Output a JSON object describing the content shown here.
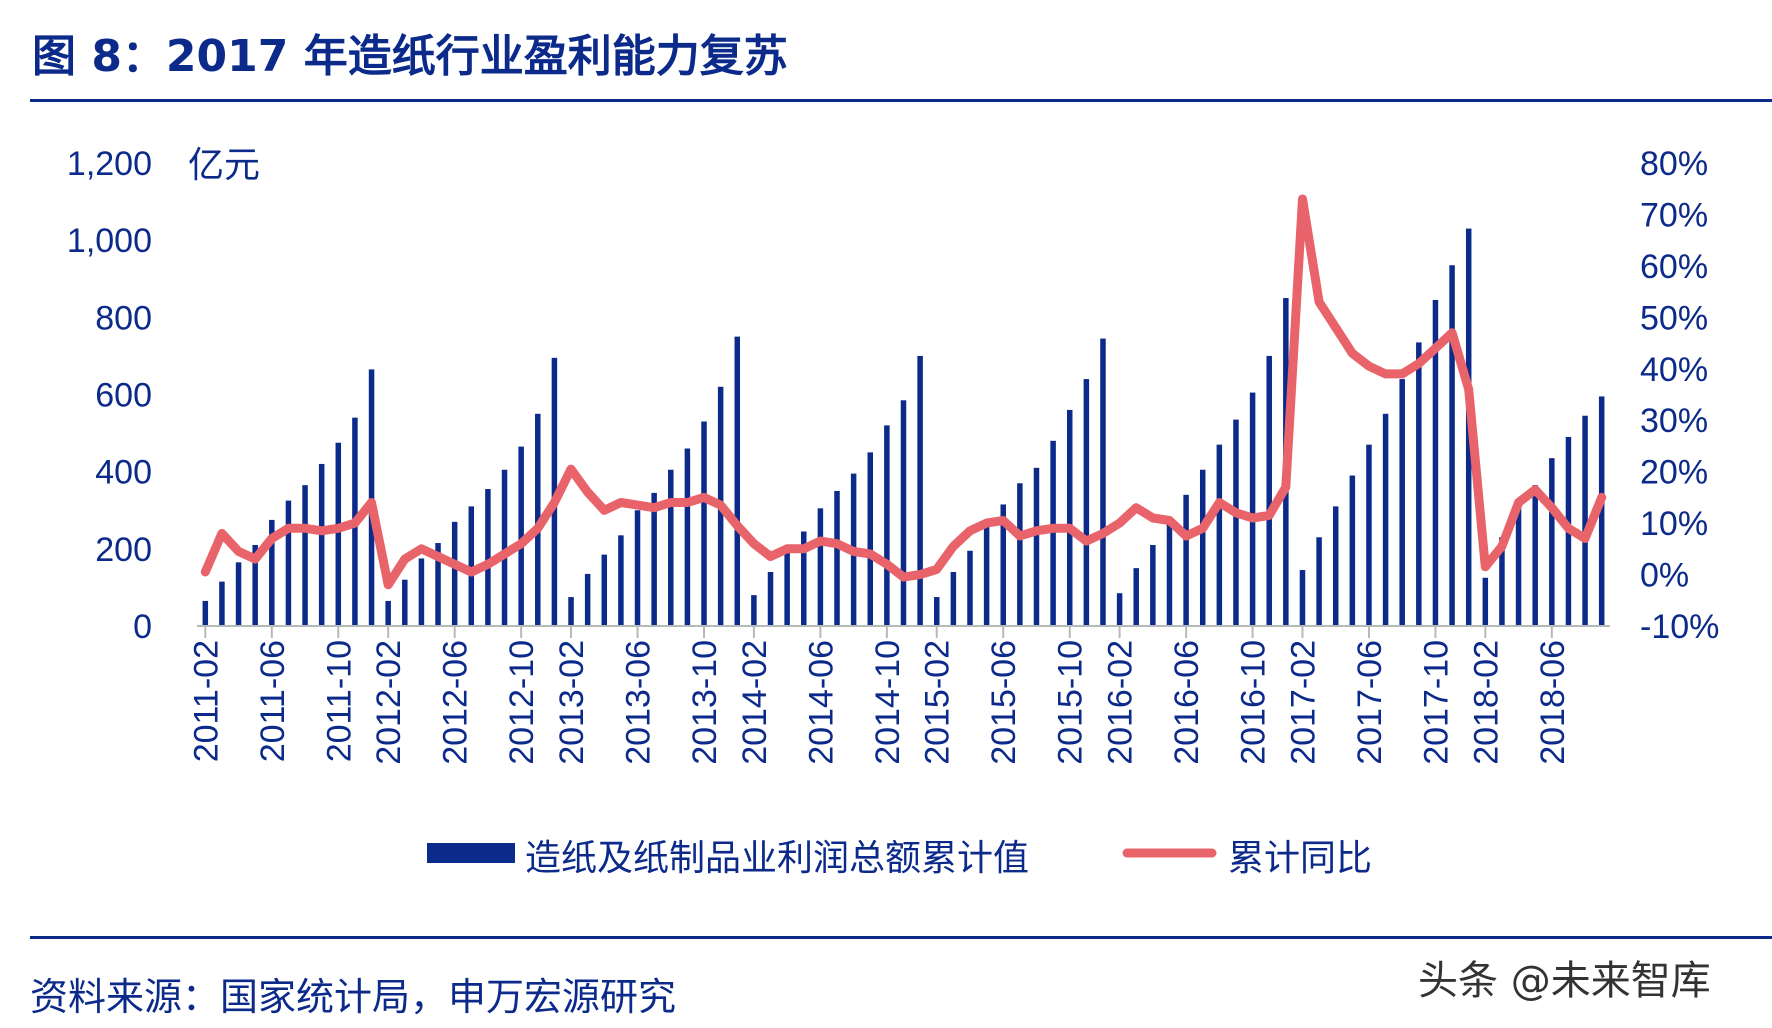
{
  "header": {
    "title": "图 8：2017 年造纸行业盈利能力复苏"
  },
  "footer": {
    "source": "资料来源：国家统计局，申万宏源研究",
    "watermark": "头条 @未来智库"
  },
  "chart_data": {
    "type": "bar+line",
    "title": "",
    "left_axis": {
      "unit": "亿元",
      "ticks": [
        "0",
        "200",
        "400",
        "600",
        "800",
        "1,000",
        "1,200"
      ],
      "ylim": [
        0,
        1200
      ]
    },
    "right_axis": {
      "ticks": [
        "-10%",
        "0%",
        "10%",
        "20%",
        "30%",
        "40%",
        "50%",
        "60%",
        "70%",
        "80%"
      ],
      "ylim": [
        -10,
        80
      ]
    },
    "x_tick_labels": [
      "2011-02",
      "2011-06",
      "2011-10",
      "2012-02",
      "2012-06",
      "2012-10",
      "2013-02",
      "2013-06",
      "2013-10",
      "2014-02",
      "2014-06",
      "2014-10",
      "2015-02",
      "2015-06",
      "2015-10",
      "2016-02",
      "2016-06",
      "2016-10",
      "2017-02",
      "2017-06",
      "2017-10",
      "2018-02",
      "2018-06"
    ],
    "categories": [
      "2011-02",
      "2011-03",
      "2011-04",
      "2011-05",
      "2011-06",
      "2011-07",
      "2011-08",
      "2011-09",
      "2011-10",
      "2011-11",
      "2011-12",
      "2012-02",
      "2012-03",
      "2012-04",
      "2012-05",
      "2012-06",
      "2012-07",
      "2012-08",
      "2012-09",
      "2012-10",
      "2012-11",
      "2012-12",
      "2013-02",
      "2013-03",
      "2013-04",
      "2013-05",
      "2013-06",
      "2013-07",
      "2013-08",
      "2013-09",
      "2013-10",
      "2013-11",
      "2013-12",
      "2014-02",
      "2014-03",
      "2014-04",
      "2014-05",
      "2014-06",
      "2014-07",
      "2014-08",
      "2014-09",
      "2014-10",
      "2014-11",
      "2014-12",
      "2015-02",
      "2015-03",
      "2015-04",
      "2015-05",
      "2015-06",
      "2015-07",
      "2015-08",
      "2015-09",
      "2015-10",
      "2015-11",
      "2015-12",
      "2016-02",
      "2016-03",
      "2016-04",
      "2016-05",
      "2016-06",
      "2016-07",
      "2016-08",
      "2016-09",
      "2016-10",
      "2016-11",
      "2016-12",
      "2017-02",
      "2017-03",
      "2017-04",
      "2017-05",
      "2017-06",
      "2017-07",
      "2017-08",
      "2017-09",
      "2017-10",
      "2017-11",
      "2017-12",
      "2018-02",
      "2018-03",
      "2018-04",
      "2018-05",
      "2018-06",
      "2018-07",
      "2018-08",
      "2018-09"
    ],
    "series": [
      {
        "name": "造纸及纸制品业利润总额累计值",
        "type": "bar",
        "axis": "left",
        "color": "#0b2a8a",
        "values": [
          65,
          115,
          165,
          210,
          275,
          325,
          365,
          420,
          475,
          540,
          665,
          65,
          120,
          175,
          215,
          270,
          310,
          355,
          405,
          465,
          550,
          695,
          75,
          135,
          185,
          235,
          300,
          345,
          405,
          460,
          530,
          620,
          750,
          80,
          140,
          190,
          245,
          305,
          350,
          395,
          450,
          520,
          585,
          700,
          75,
          140,
          195,
          260,
          315,
          370,
          410,
          480,
          560,
          640,
          745,
          85,
          150,
          210,
          270,
          340,
          405,
          470,
          535,
          605,
          700,
          850,
          145,
          230,
          310,
          390,
          470,
          550,
          640,
          735,
          845,
          935,
          1030,
          125,
          230,
          305,
          365,
          435,
          490,
          545,
          595
        ]
      },
      {
        "name": "累计同比",
        "type": "line",
        "axis": "right",
        "color": "#e8646a",
        "values": [
          0.5,
          8,
          4.5,
          3,
          7,
          9,
          9,
          8.5,
          9,
          10,
          14,
          -2,
          3,
          5,
          3.5,
          2,
          0.5,
          2,
          4,
          6,
          9,
          14,
          20.5,
          16,
          12.5,
          14,
          13.5,
          13,
          14,
          14,
          15,
          13.5,
          9.5,
          6,
          3.5,
          5,
          5,
          6.5,
          6,
          4.5,
          4,
          2,
          -0.5,
          0,
          1,
          5.5,
          8.5,
          10,
          10.5,
          7.5,
          8.5,
          9,
          9,
          6.5,
          8,
          10,
          13,
          11,
          10.5,
          7.5,
          9,
          14,
          12,
          11,
          11.5,
          17,
          73,
          53,
          48,
          43,
          40.5,
          39,
          39,
          41,
          44,
          47,
          36,
          1.5,
          5.5,
          14,
          16.5,
          13,
          9,
          7,
          15
        ]
      }
    ],
    "legend": {
      "placement": "bottom-center",
      "bar_label": "造纸及纸制品业利润总额累计值",
      "line_label": "累计同比"
    },
    "grid": false
  }
}
